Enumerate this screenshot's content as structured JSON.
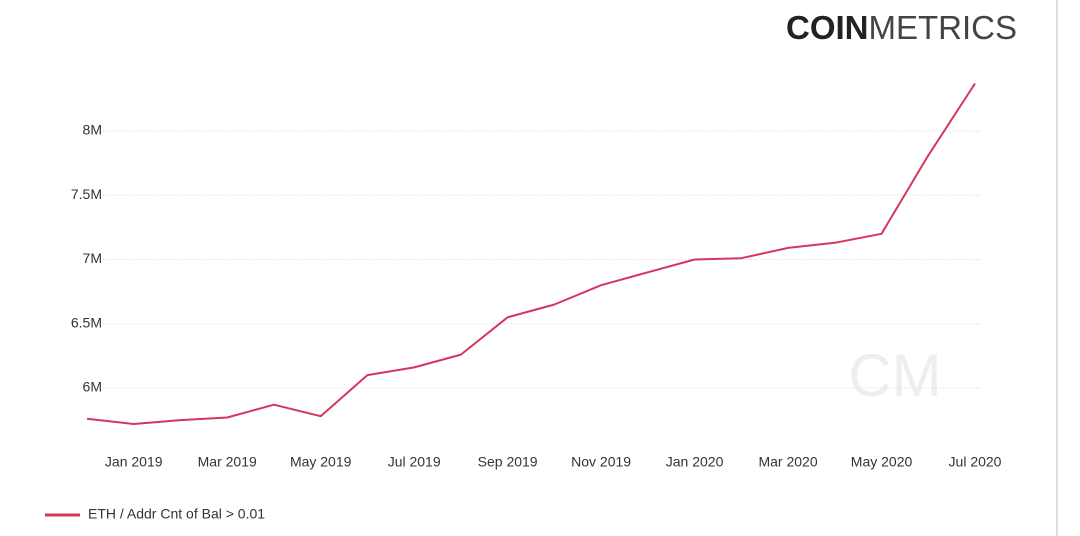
{
  "brand": {
    "bold": "COIN",
    "light": "METRICS"
  },
  "watermark": "CM",
  "chart_data": {
    "type": "line",
    "x": [
      "2018-12",
      "2019-01",
      "2019-02",
      "2019-03",
      "2019-04",
      "2019-05",
      "2019-06",
      "2019-07",
      "2019-08",
      "2019-09",
      "2019-10",
      "2019-11",
      "2019-12",
      "2020-01",
      "2020-02",
      "2020-03",
      "2020-04",
      "2020-05",
      "2020-06",
      "2020-07"
    ],
    "series": [
      {
        "name": "ETH / Addr Cnt of Bal > 0.01",
        "color": "#d6365c",
        "values": [
          5760000,
          5720000,
          5750000,
          5770000,
          5870000,
          5780000,
          6100000,
          6160000,
          6260000,
          6550000,
          6650000,
          6800000,
          6900000,
          7000000,
          7010000,
          7090000,
          7130000,
          7200000,
          7810000,
          8370000
        ]
      }
    ],
    "xlim": [
      "2018-12",
      "2020-07"
    ],
    "xticks": [
      {
        "value": "2019-01",
        "label": "Jan 2019"
      },
      {
        "value": "2019-03",
        "label": "Mar 2019"
      },
      {
        "value": "2019-05",
        "label": "May 2019"
      },
      {
        "value": "2019-07",
        "label": "Jul 2019"
      },
      {
        "value": "2019-09",
        "label": "Sep 2019"
      },
      {
        "value": "2019-11",
        "label": "Nov 2019"
      },
      {
        "value": "2020-01",
        "label": "Jan 2020"
      },
      {
        "value": "2020-03",
        "label": "Mar 2020"
      },
      {
        "value": "2020-05",
        "label": "May 2020"
      },
      {
        "value": "2020-07",
        "label": "Jul 2020"
      }
    ],
    "ylim": [
      5550000,
      8450000
    ],
    "yticks": [
      {
        "value": 6000000,
        "label": "6M"
      },
      {
        "value": 6500000,
        "label": "6.5M"
      },
      {
        "value": 7000000,
        "label": "7M"
      },
      {
        "value": 7500000,
        "label": "7.5M"
      },
      {
        "value": 8000000,
        "label": "8M"
      }
    ],
    "grid": true,
    "legend": "bottom-left"
  }
}
